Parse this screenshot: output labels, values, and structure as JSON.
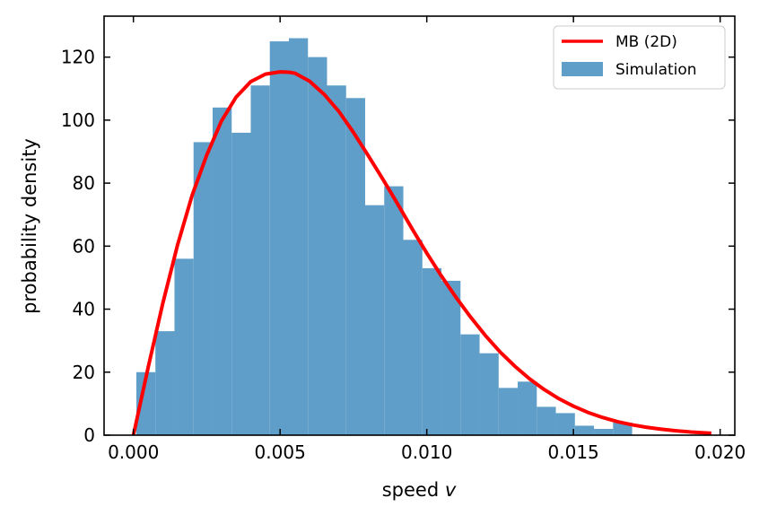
{
  "chart_data": {
    "type": "bar",
    "xlabel": "speed",
    "xlabel_var": "v",
    "ylabel": "probability density",
    "xlim": [
      -0.001,
      0.0205
    ],
    "ylim": [
      0,
      133
    ],
    "xticks": [
      0.0,
      0.005,
      0.01,
      0.015,
      0.02
    ],
    "xtick_labels": [
      "0.000",
      "0.005",
      "0.010",
      "0.015",
      "0.020"
    ],
    "yticks": [
      0,
      20,
      40,
      60,
      80,
      100,
      120
    ],
    "ytick_labels": [
      "0",
      "20",
      "40",
      "60",
      "80",
      "100",
      "120"
    ],
    "grid": false,
    "legend_position": "top-right",
    "histogram": {
      "name": "Simulation",
      "color": "#5f9ec9",
      "bin_edges": [
        0.0001,
        0.00075,
        0.0014,
        0.00205,
        0.0027,
        0.00335,
        0.004,
        0.00465,
        0.0053,
        0.00595,
        0.0066,
        0.00725,
        0.0079,
        0.00855,
        0.0092,
        0.00985,
        0.0105,
        0.01115,
        0.0118,
        0.01245,
        0.0131,
        0.01375,
        0.0144,
        0.01505,
        0.0157,
        0.01635,
        0.017
      ],
      "values": [
        20,
        33,
        56,
        93,
        104,
        96,
        111,
        125,
        126,
        120,
        111,
        107,
        73,
        79,
        62,
        53,
        49,
        32,
        26,
        15,
        17,
        9,
        7,
        3,
        2,
        4
      ]
    },
    "curve": {
      "name": "MB (2D)",
      "color": "#ff0000",
      "x": [
        0.0,
        0.0005,
        0.001,
        0.0015,
        0.002,
        0.0025,
        0.003,
        0.0035,
        0.004,
        0.0045,
        0.005,
        0.0053,
        0.0055,
        0.006,
        0.0065,
        0.007,
        0.0075,
        0.008,
        0.0085,
        0.009,
        0.0095,
        0.01,
        0.0105,
        0.011,
        0.0115,
        0.012,
        0.0125,
        0.013,
        0.0135,
        0.014,
        0.0145,
        0.015,
        0.0155,
        0.016,
        0.0165,
        0.017,
        0.0175,
        0.018,
        0.0185,
        0.019,
        0.0197
      ],
      "y": [
        0,
        21.4,
        41.8,
        60.2,
        76.1,
        88.9,
        99.7,
        107.3,
        112.2,
        114.6,
        115.3,
        115.2,
        114.9,
        112.4,
        108.2,
        102.8,
        96.1,
        88.8,
        81.3,
        73.5,
        65.5,
        57.8,
        50.5,
        43.7,
        37.4,
        31.6,
        26.4,
        21.9,
        17.9,
        14.5,
        11.6,
        9.2,
        7.2,
        5.6,
        4.3,
        3.3,
        2.5,
        1.9,
        1.4,
        1.0,
        0.6
      ]
    }
  }
}
